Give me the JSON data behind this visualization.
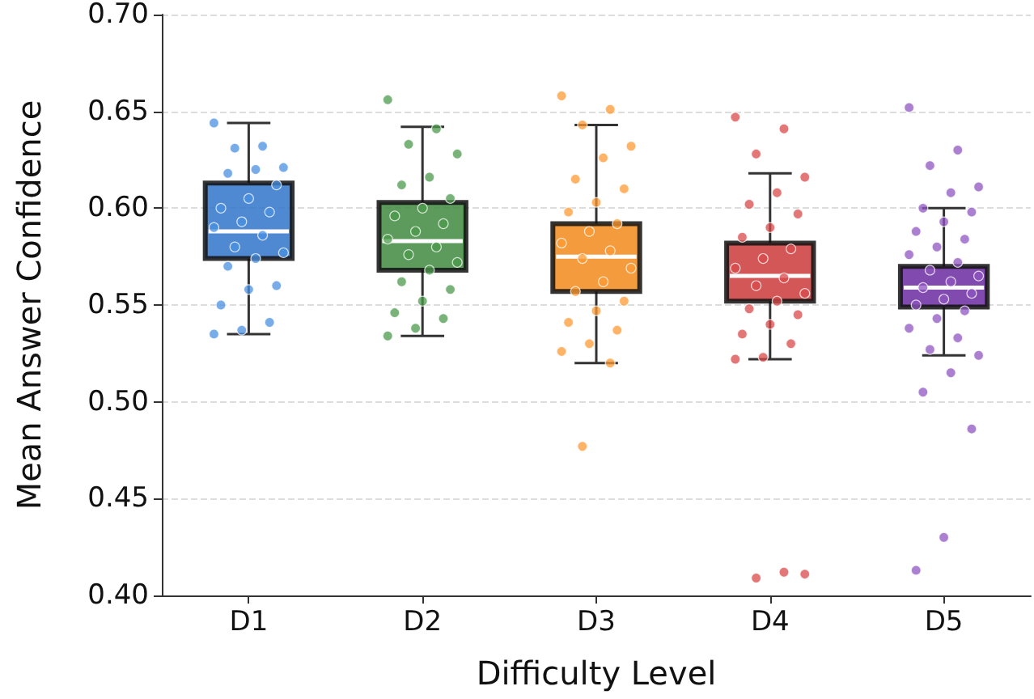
{
  "chart_data": {
    "type": "box",
    "xlabel": "Difficulty Level",
    "ylabel": "Mean Answer Confidence",
    "categories": [
      "D1",
      "D2",
      "D3",
      "D4",
      "D5"
    ],
    "colors": [
      "#2f74c9",
      "#3f8a3f",
      "#f28a1b",
      "#cc3a3a",
      "#6a2aa0"
    ],
    "boxes": [
      {
        "low": 0.535,
        "q1": 0.574,
        "median": 0.588,
        "q3": 0.613,
        "high": 0.644
      },
      {
        "low": 0.534,
        "q1": 0.568,
        "median": 0.583,
        "q3": 0.603,
        "high": 0.642
      },
      {
        "low": 0.52,
        "q1": 0.557,
        "median": 0.575,
        "q3": 0.592,
        "high": 0.643
      },
      {
        "low": 0.522,
        "q1": 0.552,
        "median": 0.565,
        "q3": 0.582,
        "high": 0.618
      },
      {
        "low": 0.524,
        "q1": 0.549,
        "median": 0.559,
        "q3": 0.57,
        "high": 0.6
      }
    ],
    "series": [
      {
        "type": "scatter",
        "color": "#4a90e2",
        "x": [
          "D1",
          "D1",
          "D1",
          "D1",
          "D1",
          "D1",
          "D1",
          "D1",
          "D1",
          "D1",
          "D1",
          "D1",
          "D1",
          "D1",
          "D1",
          "D1",
          "D1",
          "D1",
          "D1",
          "D1",
          "D1",
          "D1",
          "D1"
        ],
        "values": [
          0.644,
          0.632,
          0.631,
          0.621,
          0.62,
          0.618,
          0.612,
          0.605,
          0.6,
          0.598,
          0.593,
          0.59,
          0.586,
          0.58,
          0.577,
          0.574,
          0.57,
          0.56,
          0.558,
          0.55,
          0.541,
          0.537,
          0.535
        ]
      },
      {
        "type": "scatter",
        "color": "#4c9a4c",
        "x": [
          "D2",
          "D2",
          "D2",
          "D2",
          "D2",
          "D2",
          "D2",
          "D2",
          "D2",
          "D2",
          "D2",
          "D2",
          "D2",
          "D2",
          "D2",
          "D2",
          "D2",
          "D2",
          "D2",
          "D2",
          "D2",
          "D2",
          "D2"
        ],
        "values": [
          0.656,
          0.641,
          0.633,
          0.628,
          0.616,
          0.612,
          0.605,
          0.6,
          0.596,
          0.592,
          0.588,
          0.584,
          0.58,
          0.576,
          0.572,
          0.568,
          0.562,
          0.558,
          0.552,
          0.546,
          0.543,
          0.538,
          0.534
        ]
      },
      {
        "type": "scatter",
        "color": "#ff9a33",
        "x": [
          "D3",
          "D3",
          "D3",
          "D3",
          "D3",
          "D3",
          "D3",
          "D3",
          "D3",
          "D3",
          "D3",
          "D3",
          "D3",
          "D3",
          "D3",
          "D3",
          "D3",
          "D3",
          "D3",
          "D3",
          "D3",
          "D3",
          "D3",
          "D3",
          "D3"
        ],
        "values": [
          0.658,
          0.651,
          0.643,
          0.632,
          0.626,
          0.615,
          0.61,
          0.603,
          0.598,
          0.592,
          0.588,
          0.582,
          0.578,
          0.574,
          0.569,
          0.562,
          0.557,
          0.552,
          0.547,
          0.541,
          0.537,
          0.53,
          0.526,
          0.52,
          0.477
        ]
      },
      {
        "type": "scatter",
        "color": "#d94a4a",
        "x": [
          "D4",
          "D4",
          "D4",
          "D4",
          "D4",
          "D4",
          "D4",
          "D4",
          "D4",
          "D4",
          "D4",
          "D4",
          "D4",
          "D4",
          "D4",
          "D4",
          "D4",
          "D4",
          "D4",
          "D4",
          "D4",
          "D4",
          "D4",
          "D4",
          "D4",
          "D4"
        ],
        "values": [
          0.647,
          0.641,
          0.628,
          0.616,
          0.608,
          0.602,
          0.597,
          0.59,
          0.585,
          0.579,
          0.574,
          0.569,
          0.564,
          0.56,
          0.556,
          0.552,
          0.548,
          0.545,
          0.54,
          0.535,
          0.53,
          0.523,
          0.522,
          0.412,
          0.409,
          0.411
        ]
      },
      {
        "type": "scatter",
        "color": "#9055c0",
        "x": [
          "D5",
          "D5",
          "D5",
          "D5",
          "D5",
          "D5",
          "D5",
          "D5",
          "D5",
          "D5",
          "D5",
          "D5",
          "D5",
          "D5",
          "D5",
          "D5",
          "D5",
          "D5",
          "D5",
          "D5",
          "D5",
          "D5",
          "D5",
          "D5",
          "D5",
          "D5",
          "D5",
          "D5",
          "D5",
          "D5",
          "D5"
        ],
        "values": [
          0.652,
          0.63,
          0.622,
          0.611,
          0.608,
          0.6,
          0.598,
          0.593,
          0.588,
          0.584,
          0.58,
          0.576,
          0.572,
          0.568,
          0.565,
          0.562,
          0.559,
          0.556,
          0.553,
          0.55,
          0.547,
          0.543,
          0.538,
          0.533,
          0.527,
          0.524,
          0.515,
          0.505,
          0.486,
          0.43,
          0.413
        ]
      }
    ],
    "ylim": [
      0.4,
      0.7
    ],
    "yticks": [
      {
        "value": 0.4,
        "label": "0.40"
      },
      0.45,
      {
        "value": 0.5,
        "label": "0.50"
      },
      0.55,
      {
        "value": 0.6,
        "label": "0.60"
      },
      0.65,
      {
        "value": 0.7,
        "label": "0.70"
      }
    ],
    "grid": "y",
    "marker": "circle"
  }
}
